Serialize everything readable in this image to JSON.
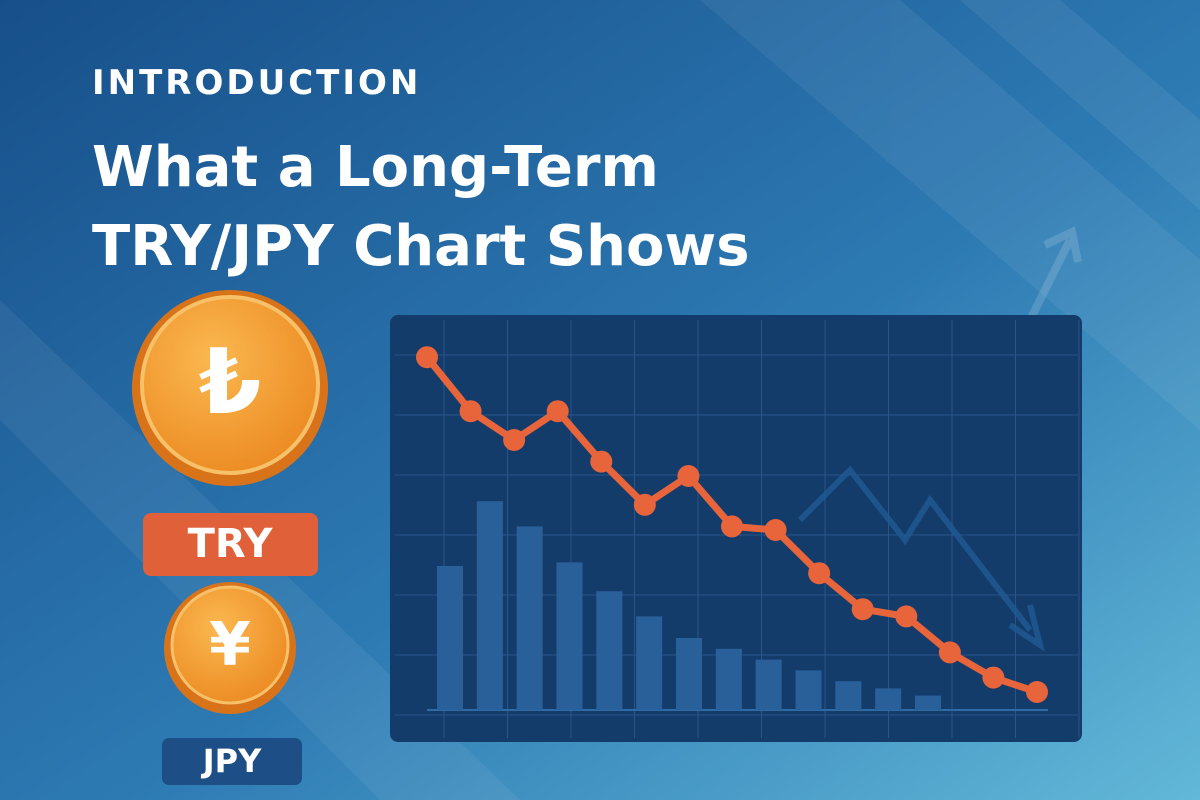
{
  "eyebrow": "INTRODUCTION",
  "title": [
    "What a Long-Term",
    "TRY/JPY Chart Shows"
  ],
  "coins": [
    {
      "symbol": "₺",
      "label": "TRY"
    },
    {
      "symbol": "¥",
      "label": "JPY"
    }
  ],
  "chart": {
    "type": "line-bar",
    "line": {
      "color": "#e8643a",
      "values": [
        98,
        83,
        75,
        83,
        69,
        57,
        65,
        51,
        50,
        38,
        28,
        26,
        16,
        9,
        5
      ]
    },
    "bars": {
      "color": "#2a609a",
      "values": [
        40,
        58,
        51,
        41,
        33,
        26,
        20,
        17,
        14,
        11,
        8,
        6,
        4
      ]
    },
    "ylim": [
      0,
      100
    ]
  }
}
